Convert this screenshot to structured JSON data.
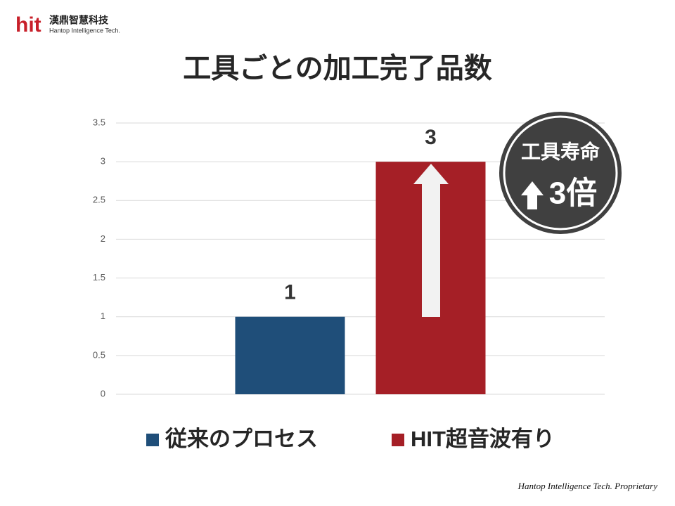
{
  "logo": {
    "mark": "hit",
    "name": "漢鼎智慧科技",
    "subtitle": "Hantop Intelligence Tech."
  },
  "footer": "Hantop Intelligence Tech. Proprietary",
  "chart_data": {
    "type": "bar",
    "title": "工具ごとの加工完了品数",
    "categories": [
      null
    ],
    "series": [
      {
        "name": "従来のプロセス",
        "color": "#1f4e79",
        "values": [
          1
        ]
      },
      {
        "name": "HIT超音波有り",
        "color": "#a51f26",
        "values": [
          3
        ]
      }
    ],
    "ylim": [
      0,
      3.5
    ],
    "yticks": [
      0,
      0.5,
      1,
      1.5,
      2,
      2.5,
      3,
      3.5
    ],
    "grid": true,
    "annotation": {
      "line1": "工具寿命",
      "line2": "3倍"
    }
  }
}
